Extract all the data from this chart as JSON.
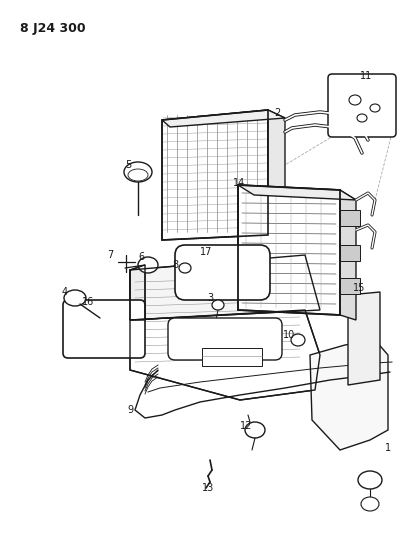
{
  "title": "8 J24 300",
  "bg": "#ffffff",
  "lc": "#1a1a1a",
  "figsize": [
    4.04,
    5.33
  ],
  "dpi": 100
}
